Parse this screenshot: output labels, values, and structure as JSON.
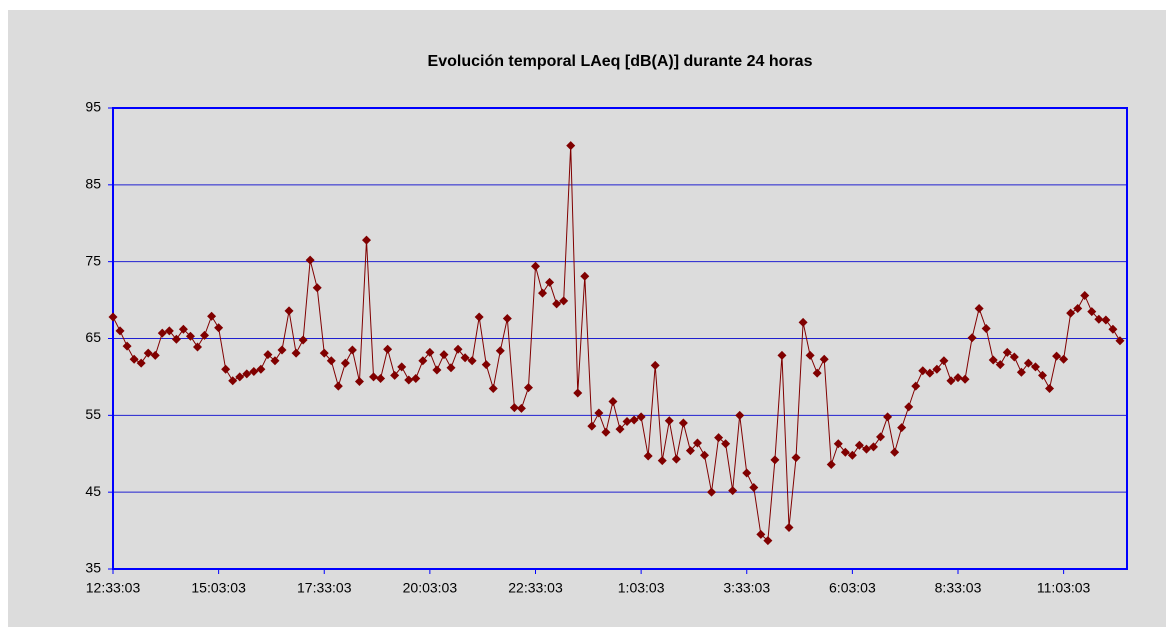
{
  "chart_data": {
    "type": "line",
    "title": "Evolución temporal LAeq [dB(A)] durante 24 horas",
    "categories": [
      "12:33:03",
      null,
      null,
      null,
      null,
      null,
      null,
      null,
      null,
      null,
      null,
      null,
      null,
      null,
      null,
      "15:03:03",
      null,
      null,
      null,
      null,
      null,
      null,
      null,
      null,
      null,
      null,
      null,
      null,
      null,
      null,
      "17:33:03",
      null,
      null,
      null,
      null,
      null,
      null,
      null,
      null,
      null,
      null,
      null,
      null,
      null,
      null,
      "20:03:03",
      null,
      null,
      null,
      null,
      null,
      null,
      null,
      null,
      null,
      null,
      null,
      null,
      null,
      null,
      "22:33:03",
      null,
      null,
      null,
      null,
      null,
      null,
      null,
      null,
      null,
      null,
      null,
      null,
      null,
      null,
      "1:03:03",
      null,
      null,
      null,
      null,
      null,
      null,
      null,
      null,
      null,
      null,
      null,
      null,
      null,
      null,
      "3:33:03",
      null,
      null,
      null,
      null,
      null,
      null,
      null,
      null,
      null,
      null,
      null,
      null,
      null,
      null,
      "6:03:03",
      null,
      null,
      null,
      null,
      null,
      null,
      null,
      null,
      null,
      null,
      null,
      null,
      null,
      null,
      "8:33:03",
      null,
      null,
      null,
      null,
      null,
      null,
      null,
      null,
      null,
      null,
      null,
      null,
      null,
      null,
      "11:03:03",
      null,
      null,
      null,
      null,
      null,
      null,
      null,
      null
    ],
    "values": [
      67.8,
      66,
      64,
      62.3,
      61.8,
      63.1,
      62.8,
      65.7,
      66,
      64.9,
      66.2,
      65.3,
      63.9,
      65.4,
      67.9,
      66.4,
      61,
      59.5,
      60,
      60.4,
      60.7,
      61,
      62.9,
      62.1,
      63.5,
      68.6,
      63.1,
      64.8,
      75.2,
      71.6,
      63.1,
      62.1,
      58.8,
      61.8,
      63.5,
      59.4,
      77.8,
      60,
      59.8,
      63.6,
      60.2,
      61.3,
      59.6,
      59.8,
      62.1,
      63.2,
      60.9,
      62.9,
      61.2,
      63.6,
      62.5,
      62.1,
      67.8,
      61.6,
      58.5,
      63.4,
      67.6,
      56,
      55.9,
      58.6,
      74.4,
      70.9,
      72.3,
      69.5,
      69.9,
      90.1,
      57.9,
      73.1,
      53.6,
      55.3,
      52.8,
      56.8,
      53.2,
      54.2,
      54.4,
      54.8,
      49.7,
      61.5,
      49.1,
      54.3,
      49.3,
      54,
      50.4,
      51.4,
      49.8,
      45,
      52.1,
      51.3,
      45.2,
      55,
      47.5,
      45.6,
      39.5,
      38.7,
      49.2,
      62.8,
      40.4,
      49.5,
      67.1,
      62.8,
      60.5,
      62.3,
      48.6,
      51.3,
      50.2,
      49.8,
      51.1,
      50.6,
      50.9,
      52.2,
      54.8,
      50.2,
      53.4,
      56.1,
      58.8,
      60.8,
      60.5,
      61,
      62.1,
      59.5,
      59.9,
      59.7,
      65.1,
      68.9,
      66.3,
      62.2,
      61.6,
      63.2,
      62.6,
      60.6,
      61.8,
      61.3,
      60.2,
      58.5,
      62.7,
      62.3,
      68.3,
      68.9,
      70.6,
      68.5,
      67.5,
      67.4,
      66.2,
      64.7
    ],
    "color": "#800000",
    "ylim": [
      35,
      95
    ],
    "yticks": [
      35,
      45,
      55,
      65,
      75,
      85,
      95
    ],
    "grid": true
  }
}
